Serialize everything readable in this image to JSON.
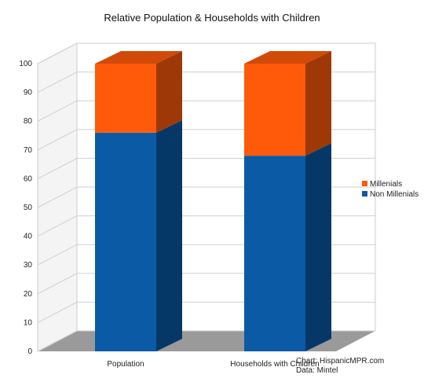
{
  "chart_data": {
    "type": "bar",
    "stacked": true,
    "three_d": true,
    "title": "Relative Population & Households with Children",
    "categories": [
      "Population",
      "Households with Children"
    ],
    "series": [
      {
        "name": "Non Millenials",
        "values": [
          76,
          68
        ],
        "color": "#0a5aa6"
      },
      {
        "name": "Millenials",
        "values": [
          24,
          32
        ],
        "color": "#ff5a0a"
      }
    ],
    "ylim": [
      0,
      100
    ],
    "yticks": [
      "0",
      "10",
      "20",
      "30",
      "40",
      "50",
      "60",
      "70",
      "80",
      "90",
      "100"
    ],
    "legend": [
      "Millenials",
      "Non Millenials"
    ],
    "legend_position": "right",
    "grid": true
  },
  "credits": {
    "line1": "Chart: HispanicMPR.com",
    "line2": "Data: Mintel"
  }
}
